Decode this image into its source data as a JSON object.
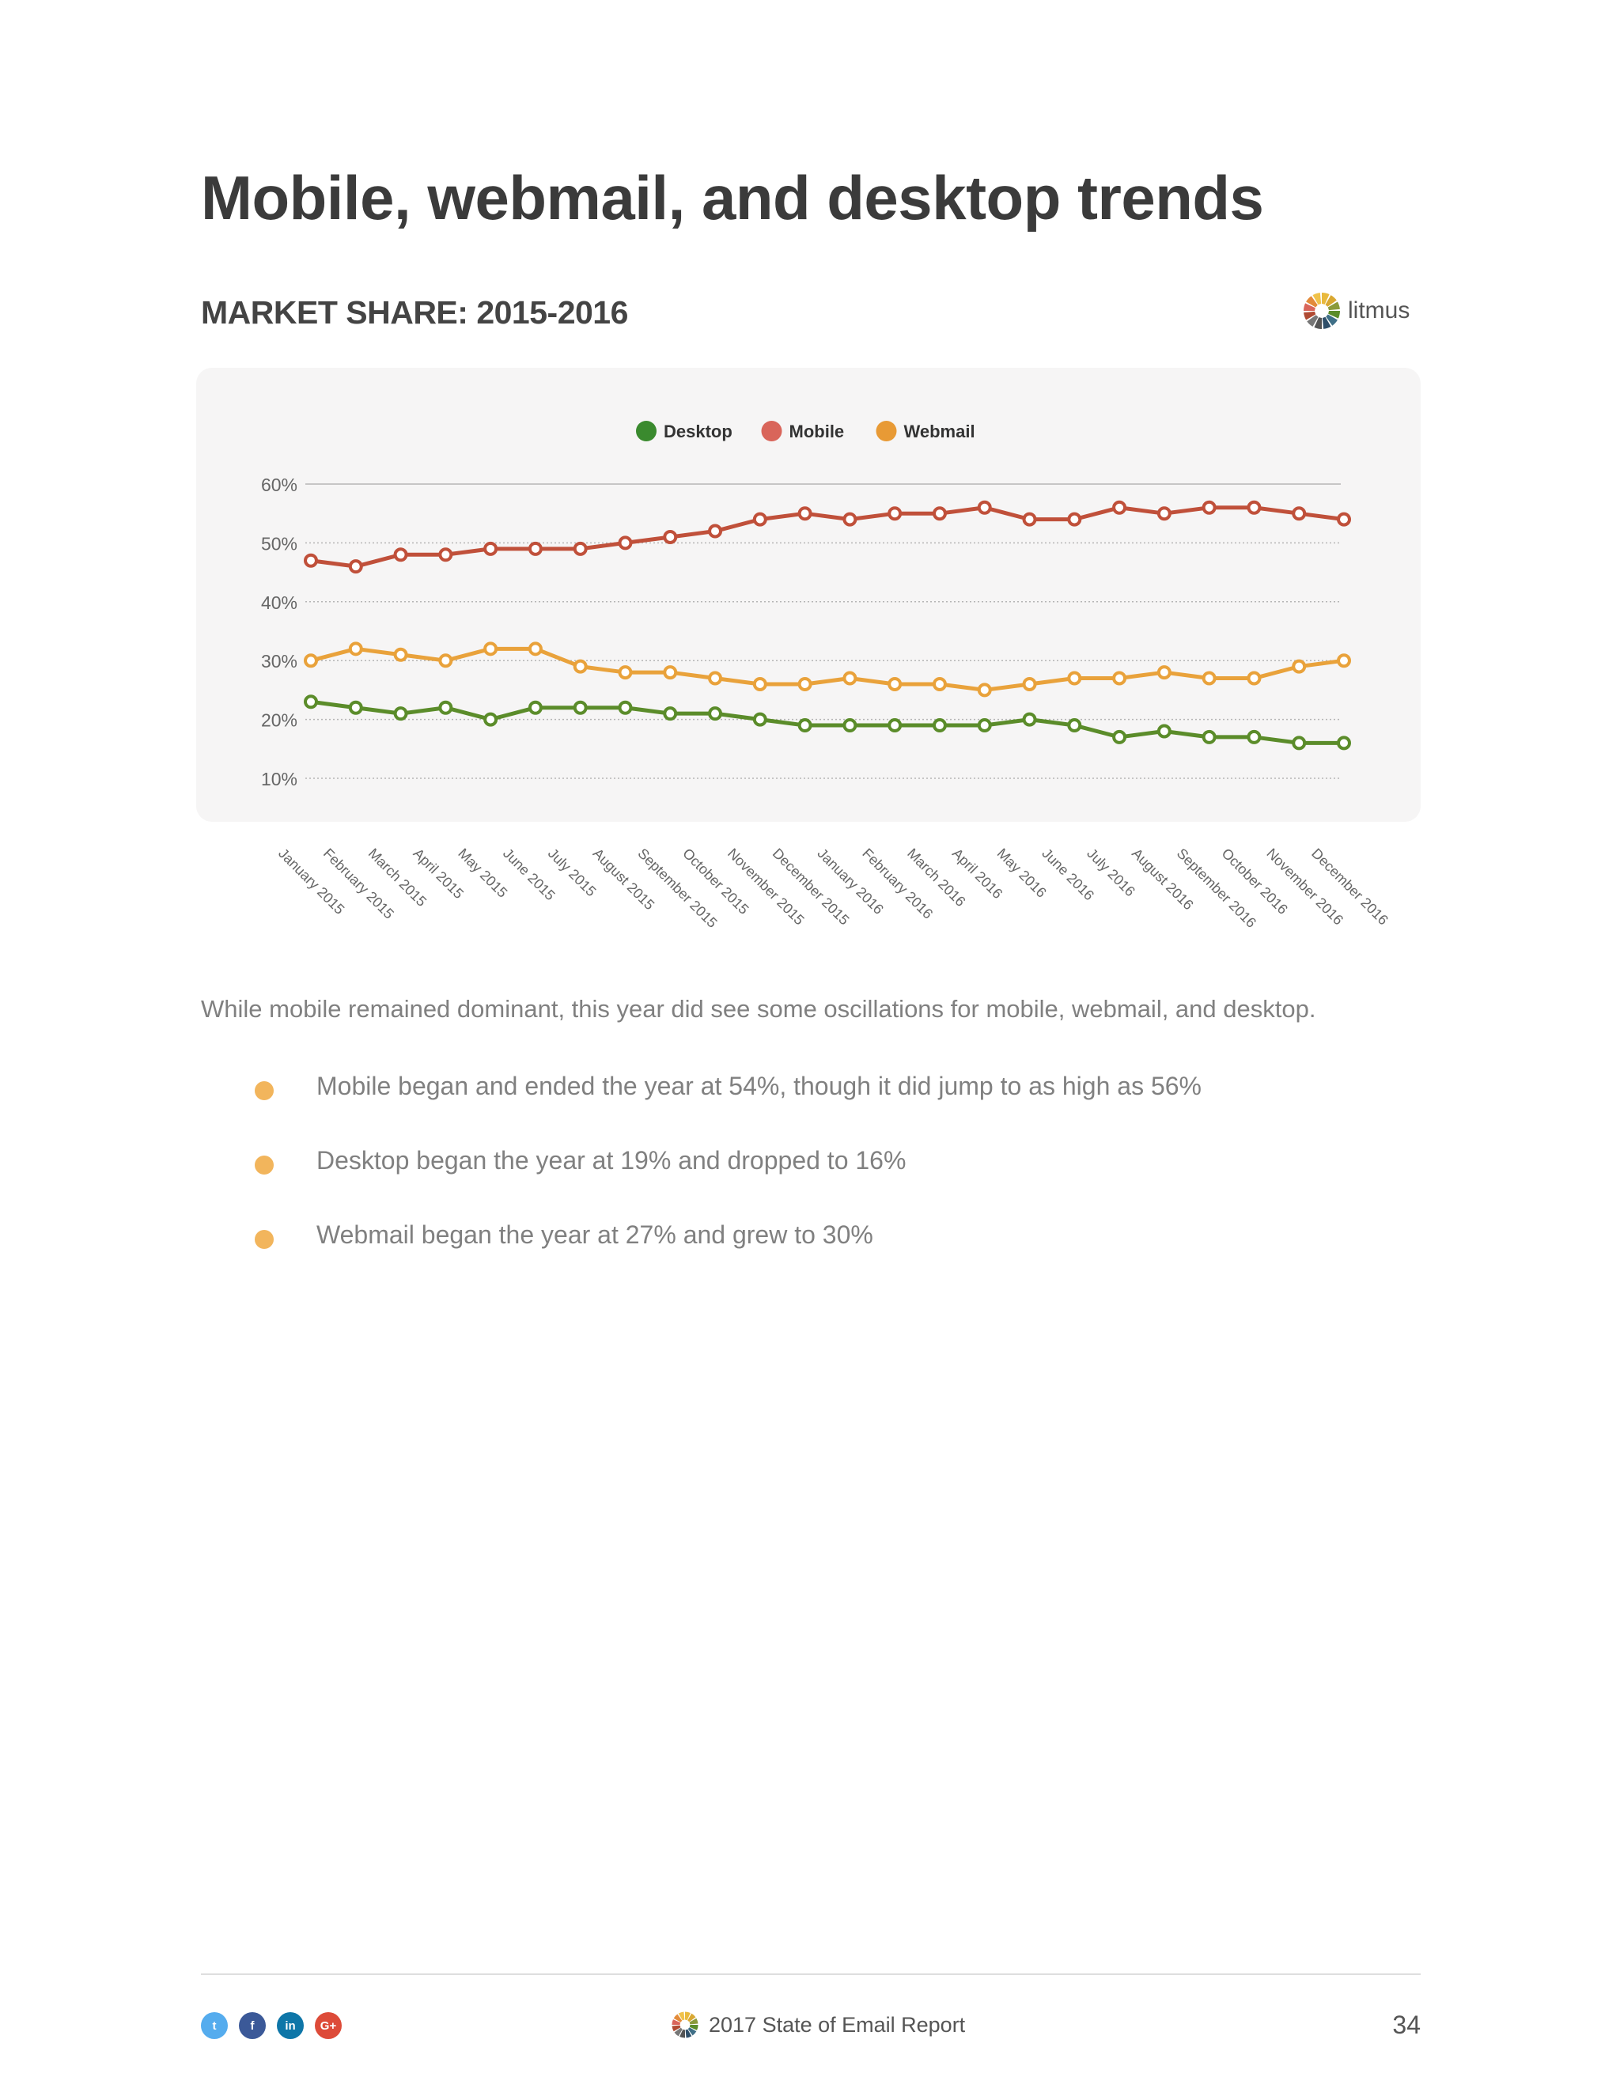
{
  "page": {
    "title": "Mobile, webmail, and desktop trends",
    "section_title": "MARKET SHARE: 2015-2016",
    "brand": "litmus"
  },
  "chart_data": {
    "type": "line",
    "legend_position": "top-center",
    "ylim": [
      10,
      60
    ],
    "yticks": [
      "60%",
      "50%",
      "40%",
      "30%",
      "20%",
      "10%"
    ],
    "categories": [
      "January 2015",
      "February 2015",
      "March 2015",
      "April 2015",
      "May 2015",
      "June 2015",
      "July 2015",
      "August 2015",
      "September 2015",
      "October 2015",
      "November 2015",
      "December 2015",
      "January 2016",
      "February 2016",
      "March 2016",
      "April 2016",
      "May 2016",
      "June 2016",
      "July 2016",
      "August 2016",
      "September 2016",
      "October 2016",
      "November 2016",
      "December 2016"
    ],
    "series": [
      {
        "name": "Desktop",
        "color": "#5b8c2a",
        "legend_color": "#3a8a2e",
        "values": [
          23,
          22,
          21,
          22,
          20,
          22,
          22,
          22,
          21,
          21,
          20,
          19,
          19,
          19,
          19,
          19,
          20,
          19,
          17,
          18,
          17,
          17,
          16,
          16
        ]
      },
      {
        "name": "Mobile",
        "color": "#c0503a",
        "legend_color": "#d9655a",
        "values": [
          47,
          46,
          48,
          48,
          49,
          49,
          49,
          50,
          51,
          52,
          54,
          55,
          54,
          55,
          55,
          56,
          54,
          54,
          56,
          55,
          56,
          56,
          55,
          54
        ]
      },
      {
        "name": "Webmail",
        "color": "#e9a23b",
        "legend_color": "#e89a35",
        "values": [
          30,
          32,
          31,
          30,
          32,
          32,
          29,
          28,
          28,
          27,
          26,
          26,
          27,
          26,
          26,
          25,
          26,
          27,
          27,
          28,
          27,
          27,
          29,
          30
        ]
      }
    ]
  },
  "body": {
    "intro": "While mobile remained dominant, this year did see some oscillations for mobile, webmail, and desktop.",
    "bullets": [
      "Mobile began and ended the year at 54%, though it did jump to as high as 56%",
      "Desktop began the year at 19% and dropped to 16%",
      "Webmail began the year at 27% and grew to 30%"
    ],
    "bullet_color": "#f2b55c"
  },
  "footer": {
    "social_icons": [
      {
        "name": "twitter-icon",
        "glyph": "t",
        "color": "#55acee"
      },
      {
        "name": "facebook-icon",
        "glyph": "f",
        "color": "#3b5998"
      },
      {
        "name": "linkedin-icon",
        "glyph": "in",
        "color": "#0e76a8"
      },
      {
        "name": "google-plus-icon",
        "glyph": "G+",
        "color": "#dd4b39"
      }
    ],
    "report_title": "2017 State of Email Report",
    "page_number": "34"
  }
}
